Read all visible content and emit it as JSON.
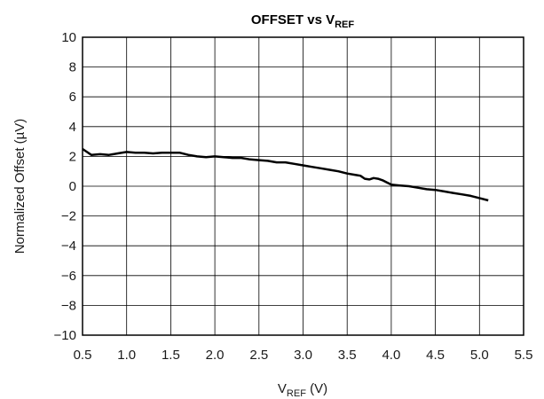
{
  "chart_data": {
    "type": "line",
    "title_main": "OFFSET vs V",
    "title_sub": "REF",
    "xlabel_main": "V",
    "xlabel_sub": "REF",
    "xlabel_unit": " (V)",
    "ylabel": "Normalized Offset (µV)",
    "xlim": [
      0.5,
      5.5
    ],
    "ylim": [
      -10,
      10
    ],
    "x_ticks": [
      0.5,
      1.0,
      1.5,
      2.0,
      2.5,
      3.0,
      3.5,
      4.0,
      4.5,
      5.0,
      5.5
    ],
    "x_tick_labels": [
      "0.5",
      "1.0",
      "1.5",
      "2.0",
      "2.5",
      "3.0",
      "3.5",
      "4.0",
      "4.5",
      "5.0",
      "5.5"
    ],
    "y_ticks": [
      10,
      8,
      6,
      4,
      2,
      0,
      -2,
      -4,
      -6,
      -8,
      -10
    ],
    "y_tick_labels": [
      "10",
      "8",
      "6",
      "4",
      "2",
      "0",
      "−2",
      "−4",
      "−6",
      "−8",
      "−10"
    ],
    "grid": true,
    "line_color": "#000000",
    "series": [
      {
        "x": [
          0.5,
          0.55,
          0.6,
          0.7,
          0.8,
          0.9,
          1.0,
          1.1,
          1.2,
          1.3,
          1.4,
          1.5,
          1.6,
          1.7,
          1.8,
          1.9,
          2.0,
          2.1,
          2.2,
          2.3,
          2.4,
          2.5,
          2.6,
          2.7,
          2.8,
          2.9,
          3.0,
          3.1,
          3.2,
          3.3,
          3.4,
          3.5,
          3.6,
          3.65,
          3.7,
          3.75,
          3.8,
          3.85,
          3.9,
          3.95,
          4.0,
          4.1,
          4.2,
          4.3,
          4.4,
          4.5,
          4.6,
          4.7,
          4.8,
          4.9,
          5.0,
          5.1
        ],
        "y": [
          2.5,
          2.3,
          2.1,
          2.15,
          2.1,
          2.2,
          2.3,
          2.25,
          2.25,
          2.2,
          2.25,
          2.25,
          2.25,
          2.1,
          2.0,
          1.95,
          2.0,
          1.95,
          1.9,
          1.9,
          1.8,
          1.75,
          1.7,
          1.6,
          1.6,
          1.5,
          1.4,
          1.3,
          1.2,
          1.1,
          1.0,
          0.85,
          0.75,
          0.7,
          0.5,
          0.45,
          0.55,
          0.5,
          0.4,
          0.25,
          0.1,
          0.05,
          0.0,
          -0.1,
          -0.2,
          -0.25,
          -0.35,
          -0.45,
          -0.55,
          -0.65,
          -0.8,
          -0.95
        ]
      }
    ]
  }
}
